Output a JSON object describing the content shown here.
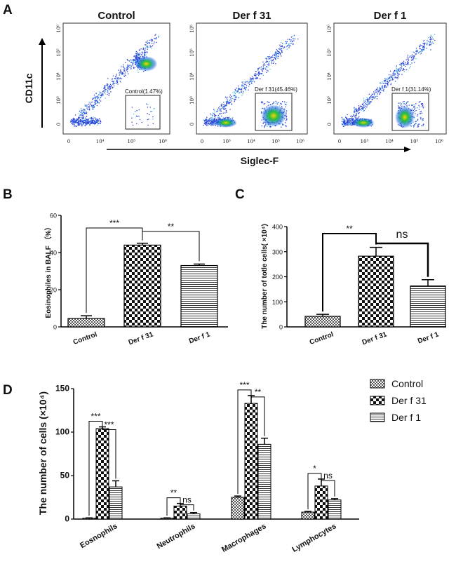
{
  "panels": {
    "A": {
      "letter": "A",
      "plots": [
        {
          "title": "Control",
          "gate_label": "Control(1.47%)"
        },
        {
          "title": "Der f 31",
          "gate_label": "Der f 31(45.46%)"
        },
        {
          "title": "Der f 1",
          "gate_label": "Der f 1(31.14%)"
        }
      ],
      "y_axis_title": "CD11c",
      "x_axis_title": "Siglec-F",
      "y_ticks": [
        "10⁶",
        "10⁵",
        "10⁴",
        "10³",
        "0"
      ],
      "x_ticks_first": [
        "0",
        "10⁴",
        "10⁵",
        "10⁶"
      ],
      "x_ticks_other": [
        "0",
        "10³",
        "10⁴",
        "10⁵",
        "10⁶"
      ]
    },
    "B": {
      "letter": "B"
    },
    "C": {
      "letter": "C"
    },
    "D": {
      "letter": "D"
    }
  },
  "chart_data": [
    {
      "panel": "B",
      "type": "bar",
      "categories": [
        "Control",
        "Der f 31",
        "Der f 1"
      ],
      "values": [
        4.5,
        44,
        33
      ],
      "errors": [
        1.5,
        1,
        0.8
      ],
      "ylabel": "Eosinophiles in BALF （%）",
      "ylim": [
        0,
        60
      ],
      "yticks": [
        0,
        20,
        40,
        60
      ],
      "significance": [
        {
          "from": 0,
          "to": 1,
          "label": "***"
        },
        {
          "from": 1,
          "to": 2,
          "label": "**"
        }
      ]
    },
    {
      "panel": "C",
      "type": "bar",
      "categories": [
        "Control",
        "Der f 31",
        "Der f 1"
      ],
      "values": [
        42,
        282,
        163
      ],
      "errors": [
        8,
        35,
        25
      ],
      "ylabel": "The number of totle cells( ×10⁴)",
      "ylim": [
        0,
        400
      ],
      "yticks": [
        0,
        100,
        200,
        300,
        400
      ],
      "significance": [
        {
          "from": 0,
          "to": 1,
          "label": "**"
        },
        {
          "from": 1,
          "to": 2,
          "label": "ns"
        }
      ]
    },
    {
      "panel": "D",
      "type": "bar",
      "categories": [
        "Eosnophils",
        "Neutrophils",
        "Macrophages",
        "Lymphocytes"
      ],
      "series": [
        {
          "name": "Control",
          "values": [
            1,
            1,
            25,
            8
          ],
          "errors": [
            0.4,
            0.4,
            1.5,
            0.8
          ]
        },
        {
          "name": "Der f 31",
          "values": [
            104,
            15,
            133,
            38
          ],
          "errors": [
            2,
            3,
            9,
            8
          ]
        },
        {
          "name": "Der f 1",
          "values": [
            37,
            6,
            86,
            22
          ],
          "errors": [
            7,
            1.5,
            7,
            1.5
          ]
        }
      ],
      "ylabel": "The number of cells (×10⁴)",
      "ylim": [
        0,
        150
      ],
      "yticks": [
        0,
        50,
        100,
        150
      ],
      "legend": "top-right",
      "significance": [
        [
          {
            "from": 0,
            "to": 1,
            "label": "***"
          },
          {
            "from": 1,
            "to": 2,
            "label": "***"
          }
        ],
        [
          {
            "from": 0,
            "to": 1,
            "label": "**"
          },
          {
            "from": 1,
            "to": 2,
            "label": "ns"
          }
        ],
        [
          {
            "from": 0,
            "to": 1,
            "label": "***"
          },
          {
            "from": 1,
            "to": 2,
            "label": "**"
          }
        ],
        [
          {
            "from": 0,
            "to": 1,
            "label": "*"
          },
          {
            "from": 1,
            "to": 2,
            "label": "ns"
          }
        ]
      ]
    }
  ]
}
